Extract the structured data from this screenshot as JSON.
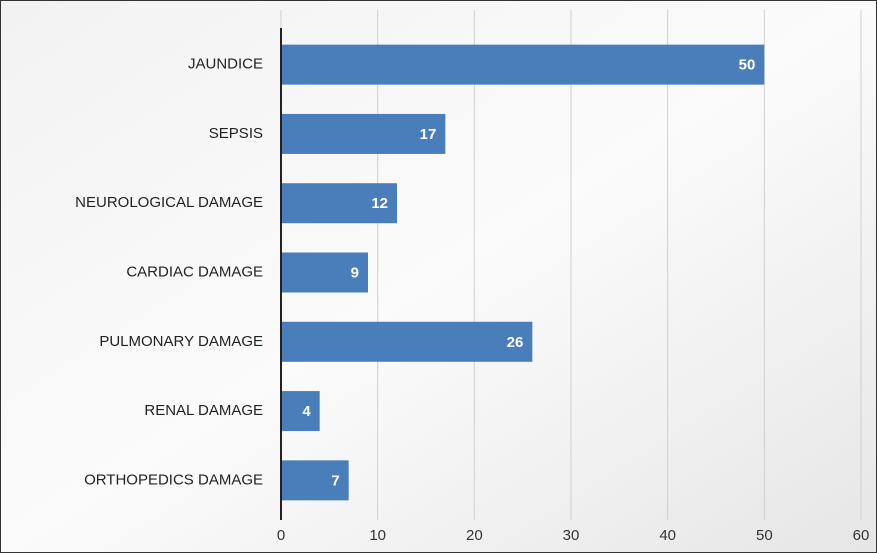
{
  "chart_data": {
    "type": "bar",
    "orientation": "horizontal",
    "categories": [
      "JAUNDICE",
      "SEPSIS",
      "NEUROLOGICAL DAMAGE",
      "CARDIAC DAMAGE",
      "PULMONARY DAMAGE",
      "RENAL DAMAGE",
      "ORTHOPEDICS DAMAGE"
    ],
    "values": [
      50,
      17,
      12,
      9,
      26,
      4,
      7
    ],
    "color": "#4a7ebb",
    "xlim": [
      0,
      60
    ],
    "xticks": [
      0,
      10,
      20,
      30,
      40,
      50,
      60
    ],
    "grid": true
  }
}
